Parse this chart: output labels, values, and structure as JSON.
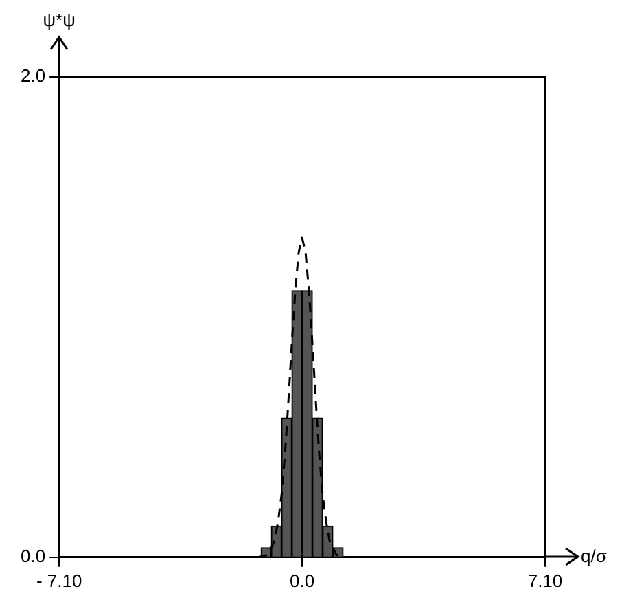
{
  "chart_data": {
    "type": "histogram",
    "xlabel": "q/σ",
    "ylabel": "ψ*ψ",
    "xlim": [
      -7.1,
      7.1
    ],
    "ylim": [
      0,
      2
    ],
    "xticks": [
      {
        "value": -7.1,
        "label": "- 7.10"
      },
      {
        "value": 0,
        "label": "0.0"
      },
      {
        "value": 7.1,
        "label": "7.10"
      }
    ],
    "yticks": [
      {
        "value": 0,
        "label": "0.0"
      },
      {
        "value": 2,
        "label": "2.0"
      }
    ],
    "series": [
      {
        "bins": [
          -1.2,
          -0.9,
          -0.6,
          -0.3,
          0,
          0.3,
          0.6,
          0.9,
          1.2
        ],
        "values": [
          0.04,
          0.13,
          0.58,
          1.11,
          1.11,
          0.58,
          0.13,
          0.04
        ],
        "color": "#555555"
      },
      {
        "type": "line",
        "x": [
          -1.3,
          -1.0,
          -0.8,
          -0.7,
          -0.6,
          -0.5,
          -0.4,
          -0.3,
          -0.2,
          -0.1,
          0,
          0.1,
          0.2,
          0.3,
          0.4,
          0.5,
          0.6,
          0.7,
          0.8,
          1.0,
          1.3
        ],
        "values": [
          0,
          0.01,
          0.07,
          0.15,
          0.26,
          0.43,
          0.65,
          0.89,
          1.11,
          1.27,
          1.33,
          1.27,
          1.11,
          0.89,
          0.65,
          0.43,
          0.26,
          0.15,
          0.07,
          0.01,
          0
        ],
        "color": "#000000",
        "line_style": "dashed"
      }
    ]
  }
}
